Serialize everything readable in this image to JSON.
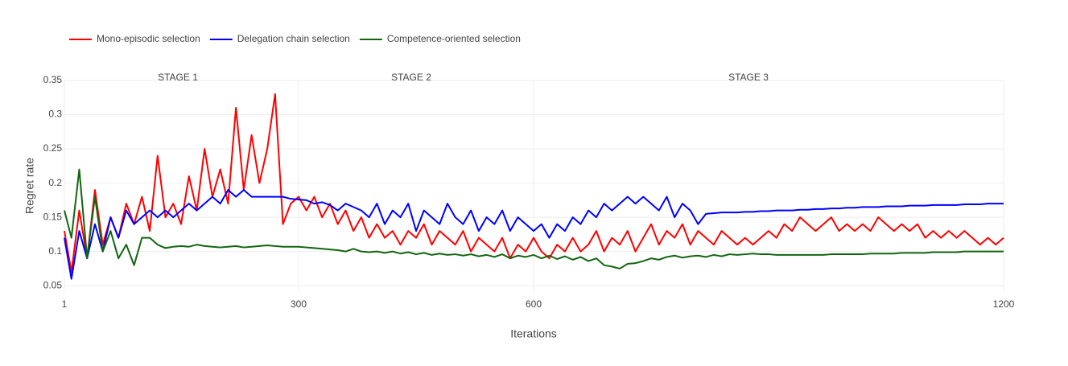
{
  "chart_data": {
    "type": "line",
    "xlabel": "Iterations",
    "ylabel": "Regret rate",
    "annotations": [
      "STAGE 1",
      "STAGE 2",
      "STAGE 3"
    ],
    "x": [
      1,
      10,
      20,
      30,
      40,
      50,
      60,
      70,
      80,
      90,
      100,
      110,
      120,
      130,
      140,
      150,
      160,
      170,
      180,
      190,
      200,
      210,
      220,
      230,
      240,
      250,
      260,
      270,
      280,
      290,
      300,
      310,
      320,
      330,
      340,
      350,
      360,
      370,
      380,
      390,
      400,
      410,
      420,
      430,
      440,
      450,
      460,
      470,
      480,
      490,
      500,
      510,
      520,
      530,
      540,
      550,
      560,
      570,
      580,
      590,
      600,
      610,
      620,
      630,
      640,
      650,
      660,
      670,
      680,
      690,
      700,
      710,
      720,
      730,
      740,
      750,
      760,
      770,
      780,
      790,
      800,
      810,
      820,
      830,
      840,
      850,
      860,
      870,
      880,
      890,
      900,
      910,
      920,
      930,
      940,
      950,
      960,
      970,
      980,
      990,
      1000,
      1010,
      1020,
      1030,
      1040,
      1050,
      1060,
      1070,
      1080,
      1090,
      1100,
      1110,
      1120,
      1130,
      1140,
      1150,
      1160,
      1170,
      1180,
      1190,
      1200
    ],
    "series": [
      {
        "name": "Mono-episodic selection",
        "color": "#ff0000",
        "values": [
          0.13,
          0.07,
          0.16,
          0.09,
          0.19,
          0.11,
          0.15,
          0.12,
          0.17,
          0.14,
          0.18,
          0.13,
          0.24,
          0.15,
          0.17,
          0.14,
          0.21,
          0.16,
          0.25,
          0.18,
          0.22,
          0.17,
          0.31,
          0.19,
          0.27,
          0.2,
          0.25,
          0.33,
          0.14,
          0.17,
          0.18,
          0.16,
          0.18,
          0.15,
          0.17,
          0.14,
          0.16,
          0.13,
          0.15,
          0.12,
          0.14,
          0.12,
          0.13,
          0.11,
          0.13,
          0.12,
          0.14,
          0.11,
          0.13,
          0.12,
          0.11,
          0.13,
          0.1,
          0.12,
          0.11,
          0.1,
          0.12,
          0.09,
          0.11,
          0.1,
          0.12,
          0.1,
          0.09,
          0.11,
          0.1,
          0.12,
          0.1,
          0.11,
          0.13,
          0.1,
          0.12,
          0.11,
          0.13,
          0.1,
          0.12,
          0.14,
          0.11,
          0.13,
          0.12,
          0.14,
          0.11,
          0.13,
          0.12,
          0.11,
          0.13,
          0.12,
          0.11,
          0.12,
          0.11,
          0.12,
          0.13,
          0.12,
          0.14,
          0.13,
          0.15,
          0.14,
          0.13,
          0.14,
          0.15,
          0.13,
          0.14,
          0.13,
          0.14,
          0.13,
          0.15,
          0.14,
          0.13,
          0.14,
          0.13,
          0.14,
          0.12,
          0.13,
          0.12,
          0.13,
          0.12,
          0.13,
          0.12,
          0.11,
          0.12,
          0.11,
          0.12
        ]
      },
      {
        "name": "Delegation chain selection",
        "color": "#0000ff",
        "values": [
          0.12,
          0.06,
          0.13,
          0.09,
          0.14,
          0.1,
          0.15,
          0.12,
          0.16,
          0.14,
          0.15,
          0.16,
          0.15,
          0.16,
          0.15,
          0.16,
          0.17,
          0.16,
          0.17,
          0.18,
          0.17,
          0.19,
          0.18,
          0.19,
          0.18,
          0.18,
          0.18,
          0.18,
          0.18,
          0.177,
          0.176,
          0.175,
          0.17,
          0.172,
          0.168,
          0.16,
          0.17,
          0.165,
          0.16,
          0.15,
          0.17,
          0.14,
          0.16,
          0.15,
          0.17,
          0.13,
          0.16,
          0.15,
          0.14,
          0.17,
          0.15,
          0.14,
          0.16,
          0.13,
          0.15,
          0.14,
          0.16,
          0.13,
          0.15,
          0.14,
          0.13,
          0.14,
          0.12,
          0.14,
          0.13,
          0.15,
          0.14,
          0.16,
          0.15,
          0.17,
          0.16,
          0.17,
          0.18,
          0.17,
          0.18,
          0.17,
          0.16,
          0.18,
          0.15,
          0.17,
          0.16,
          0.14,
          0.155,
          0.156,
          0.157,
          0.157,
          0.157,
          0.158,
          0.158,
          0.159,
          0.159,
          0.16,
          0.16,
          0.16,
          0.161,
          0.161,
          0.162,
          0.162,
          0.163,
          0.163,
          0.164,
          0.164,
          0.165,
          0.165,
          0.165,
          0.166,
          0.166,
          0.166,
          0.167,
          0.167,
          0.167,
          0.168,
          0.168,
          0.168,
          0.168,
          0.169,
          0.169,
          0.169,
          0.17,
          0.17,
          0.17
        ]
      },
      {
        "name": "Competence-oriented selection",
        "color": "#116611",
        "values": [
          0.16,
          0.12,
          0.22,
          0.09,
          0.18,
          0.1,
          0.13,
          0.09,
          0.11,
          0.08,
          0.12,
          0.12,
          0.11,
          0.105,
          0.107,
          0.108,
          0.107,
          0.11,
          0.108,
          0.107,
          0.106,
          0.107,
          0.108,
          0.106,
          0.107,
          0.108,
          0.109,
          0.108,
          0.107,
          0.107,
          0.107,
          0.106,
          0.105,
          0.104,
          0.103,
          0.102,
          0.1,
          0.104,
          0.1,
          0.099,
          0.1,
          0.098,
          0.1,
          0.097,
          0.099,
          0.096,
          0.098,
          0.095,
          0.097,
          0.095,
          0.096,
          0.094,
          0.096,
          0.093,
          0.095,
          0.092,
          0.096,
          0.09,
          0.094,
          0.092,
          0.095,
          0.09,
          0.094,
          0.089,
          0.093,
          0.088,
          0.092,
          0.086,
          0.09,
          0.08,
          0.078,
          0.075,
          0.082,
          0.083,
          0.086,
          0.09,
          0.088,
          0.092,
          0.094,
          0.091,
          0.093,
          0.094,
          0.092,
          0.095,
          0.093,
          0.096,
          0.095,
          0.096,
          0.097,
          0.096,
          0.096,
          0.095,
          0.095,
          0.095,
          0.095,
          0.095,
          0.095,
          0.095,
          0.096,
          0.096,
          0.096,
          0.096,
          0.096,
          0.097,
          0.097,
          0.097,
          0.097,
          0.098,
          0.098,
          0.098,
          0.098,
          0.099,
          0.099,
          0.099,
          0.099,
          0.1,
          0.1,
          0.1,
          0.1,
          0.1,
          0.1
        ]
      }
    ],
    "xlim": [
      1,
      1200
    ],
    "xticks": [
      1,
      300,
      600,
      1200
    ],
    "ylim": [
      0.042,
      0.35
    ],
    "yticks": [
      0.05,
      0.1,
      0.15,
      0.2,
      0.25,
      0.3,
      0.35
    ],
    "grid": true,
    "legend": "top-left"
  }
}
